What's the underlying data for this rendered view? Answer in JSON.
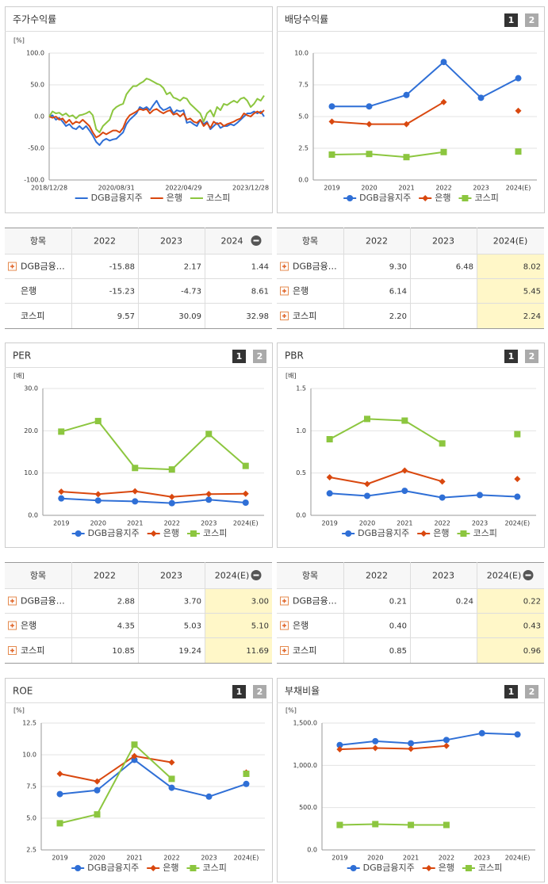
{
  "chart_data": [
    {
      "type": "line",
      "title": "주가수익률",
      "y_unit": "[%]",
      "grid": true,
      "legend": "bottom",
      "categories": [
        "2018/12/28",
        null,
        null,
        null,
        null,
        null,
        null,
        null,
        null,
        null,
        null,
        null,
        null,
        null,
        null,
        null,
        null,
        null,
        null,
        null,
        "2020/08/31",
        null,
        null,
        null,
        null,
        null,
        null,
        null,
        null,
        null,
        null,
        null,
        null,
        null,
        null,
        null,
        null,
        null,
        null,
        null,
        "2022/04/29",
        null,
        null,
        null,
        null,
        null,
        null,
        null,
        null,
        null,
        null,
        null,
        null,
        null,
        null,
        null,
        null,
        null,
        null,
        null,
        "2023/12/28",
        null,
        null,
        null,
        null
      ],
      "ylim": [
        -100,
        100
      ],
      "yticks": [
        {
          "value": -100,
          "label": "-100.0"
        },
        {
          "value": -50,
          "label": "-50.0"
        },
        {
          "value": 0,
          "label": "0.0"
        },
        {
          "value": 50,
          "label": "50.0"
        },
        {
          "value": 100,
          "label": "100.0"
        }
      ],
      "series": [
        {
          "name": "DGB금융지주",
          "color": "#2f6fd6",
          "values": [
            0,
            2,
            -5,
            -2,
            -8,
            -15,
            -12,
            -18,
            -20,
            -15,
            -20,
            -15,
            -22,
            -30,
            -40,
            -45,
            -38,
            -35,
            -38,
            -36,
            -35,
            -30,
            -25,
            -12,
            -5,
            0,
            5,
            15,
            12,
            15,
            10,
            18,
            25,
            15,
            10,
            12,
            15,
            5,
            10,
            8,
            10,
            -10,
            -8,
            -12,
            -15,
            -5,
            -12,
            -8,
            -20,
            -15,
            -10,
            -18,
            -15,
            -15,
            -12,
            -14,
            -10,
            -5,
            0,
            5,
            5,
            8,
            5,
            8,
            0
          ]
        },
        {
          "name": "은행",
          "color": "#d9480f",
          "values": [
            0,
            -2,
            0,
            -5,
            -3,
            -10,
            -5,
            -12,
            -8,
            -10,
            -5,
            -10,
            -15,
            -25,
            -33,
            -30,
            -25,
            -28,
            -25,
            -22,
            -22,
            -25,
            -18,
            -5,
            2,
            5,
            8,
            12,
            10,
            12,
            5,
            10,
            12,
            8,
            5,
            8,
            10,
            3,
            5,
            0,
            5,
            -5,
            -3,
            -8,
            -10,
            -5,
            -15,
            -10,
            -18,
            -8,
            -12,
            -10,
            -15,
            -12,
            -10,
            -8,
            -5,
            -3,
            5,
            2,
            0,
            5,
            8,
            5,
            10
          ]
        },
        {
          "name": "코스피",
          "color": "#8cc63f",
          "values": [
            0,
            8,
            5,
            6,
            2,
            5,
            0,
            2,
            -3,
            2,
            3,
            5,
            8,
            2,
            -20,
            -25,
            -15,
            -10,
            -5,
            10,
            15,
            18,
            20,
            35,
            42,
            48,
            48,
            52,
            55,
            60,
            58,
            55,
            52,
            50,
            45,
            35,
            38,
            30,
            28,
            25,
            30,
            28,
            20,
            15,
            10,
            5,
            -8,
            5,
            10,
            0,
            15,
            10,
            20,
            18,
            22,
            25,
            22,
            28,
            30,
            25,
            15,
            20,
            28,
            25,
            33
          ]
        }
      ]
    },
    {
      "type": "line",
      "title": "배당수익률",
      "buttons": [
        "1",
        "2"
      ],
      "grid": true,
      "legend": "bottom",
      "categories": [
        "2019",
        "2020",
        "2021",
        "2022",
        "2023",
        "2024(E)"
      ],
      "ylim": [
        0,
        10
      ],
      "yticks": [
        {
          "value": 0,
          "label": "0.0"
        },
        2.5,
        {
          "value": 5,
          "label": "5.0"
        },
        7.5,
        {
          "value": 10,
          "label": "10.0"
        }
      ],
      "series": [
        {
          "name": "DGB금융지주",
          "color": "#2f6fd6",
          "marker": "circle",
          "values": [
            5.8,
            5.8,
            6.7,
            9.3,
            6.48,
            8.02
          ]
        },
        {
          "name": "은행",
          "color": "#d9480f",
          "marker": "diamond",
          "values": [
            4.6,
            4.4,
            4.4,
            6.14,
            null,
            5.45
          ]
        },
        {
          "name": "코스피",
          "color": "#8cc63f",
          "marker": "square",
          "values": [
            2.0,
            2.05,
            1.8,
            2.2,
            null,
            2.24
          ]
        }
      ]
    },
    {
      "type": "line",
      "title": "PER",
      "buttons": [
        "1",
        "2"
      ],
      "y_unit": "[배]",
      "grid": true,
      "legend": "bottom",
      "categories": [
        "2019",
        "2020",
        "2021",
        "2022",
        "2023",
        "2024(E)"
      ],
      "ylim": [
        0,
        30
      ],
      "yticks": [
        {
          "value": 0,
          "label": "0.0"
        },
        {
          "value": 10,
          "label": "10.0"
        },
        {
          "value": 20,
          "label": "20.0"
        },
        {
          "value": 30,
          "label": "30.0"
        }
      ],
      "series": [
        {
          "name": "DGB금융지주",
          "color": "#2f6fd6",
          "marker": "circle",
          "values": [
            4.0,
            3.5,
            3.3,
            2.88,
            3.7,
            3.0
          ]
        },
        {
          "name": "은행",
          "color": "#d9480f",
          "marker": "diamond",
          "values": [
            5.6,
            5.0,
            5.7,
            4.35,
            5.03,
            5.1
          ]
        },
        {
          "name": "코스피",
          "color": "#8cc63f",
          "marker": "square",
          "values": [
            19.8,
            22.3,
            11.2,
            10.85,
            19.24,
            11.69
          ]
        }
      ]
    },
    {
      "type": "line",
      "title": "PBR",
      "buttons": [
        "1",
        "2"
      ],
      "y_unit": "[배]",
      "grid": true,
      "legend": "bottom",
      "categories": [
        "2019",
        "2020",
        "2021",
        "2022",
        "2023",
        "2024(E)"
      ],
      "ylim": [
        0,
        1.5
      ],
      "yticks": [
        {
          "value": 0,
          "label": "0.0"
        },
        0.5,
        {
          "value": 1,
          "label": "1.0"
        },
        1.5
      ],
      "series": [
        {
          "name": "DGB금융지주",
          "color": "#2f6fd6",
          "marker": "circle",
          "values": [
            0.26,
            0.23,
            0.29,
            0.21,
            0.24,
            0.22
          ]
        },
        {
          "name": "은행",
          "color": "#d9480f",
          "marker": "diamond",
          "values": [
            0.45,
            0.37,
            0.53,
            0.4,
            null,
            0.43
          ]
        },
        {
          "name": "코스피",
          "color": "#8cc63f",
          "marker": "square",
          "values": [
            0.9,
            1.14,
            1.12,
            0.85,
            null,
            0.96
          ]
        }
      ]
    },
    {
      "type": "line",
      "title": "ROE",
      "buttons": [
        "1",
        "2"
      ],
      "y_unit": "[%]",
      "grid": true,
      "legend": "bottom",
      "categories": [
        "2019",
        "2020",
        "2021",
        "2022",
        "2023",
        "2024(E)"
      ],
      "ylim": [
        2.5,
        12.5
      ],
      "yticks": [
        2.5,
        {
          "value": 5,
          "label": "5.0"
        },
        7.5,
        {
          "value": 10,
          "label": "10.0"
        },
        12.5
      ],
      "series": [
        {
          "name": "DGB금융지주",
          "color": "#2f6fd6",
          "marker": "circle",
          "values": [
            6.9,
            7.2,
            9.6,
            7.4,
            6.7,
            7.7
          ]
        },
        {
          "name": "은행",
          "color": "#d9480f",
          "marker": "diamond",
          "values": [
            8.5,
            7.9,
            9.9,
            9.4,
            null,
            8.6
          ]
        },
        {
          "name": "코스피",
          "color": "#8cc63f",
          "marker": "square",
          "values": [
            4.6,
            5.3,
            10.8,
            8.1,
            null,
            8.5
          ]
        }
      ]
    },
    {
      "type": "line",
      "title": "부채비율",
      "buttons": [
        "1",
        "2"
      ],
      "y_unit": "[%]",
      "grid": true,
      "legend": "bottom",
      "categories": [
        "2019",
        "2020",
        "2021",
        "2022",
        "2023",
        "2024(E)"
      ],
      "ylim": [
        0,
        1500
      ],
      "yticks": [
        {
          "value": 0,
          "label": "0.0"
        },
        {
          "value": 500,
          "label": "500.0"
        },
        {
          "value": 1000,
          "label": "1,000.0"
        },
        {
          "value": 1500,
          "label": "1,500.0"
        }
      ],
      "series": [
        {
          "name": "DGB금융지주",
          "color": "#2f6fd6",
          "marker": "circle",
          "values": [
            1240,
            1285,
            1260,
            1300,
            1380,
            1365
          ]
        },
        {
          "name": "은행",
          "color": "#d9480f",
          "marker": "diamond",
          "values": [
            1190,
            1205,
            1195,
            1230,
            null,
            null
          ]
        },
        {
          "name": "코스피",
          "color": "#8cc63f",
          "marker": "square",
          "values": [
            295,
            305,
            295,
            295,
            null,
            null
          ]
        }
      ]
    }
  ],
  "tables": [
    {
      "columns": [
        "항목",
        "2022",
        "2023",
        "2024"
      ],
      "collapse_icon": true,
      "highlight_last": false,
      "rows": [
        {
          "label": "DGB금융…",
          "expand": true,
          "cells": [
            "-15.88",
            "2.17",
            "1.44"
          ]
        },
        {
          "label": "은행",
          "expand": false,
          "cells": [
            "-15.23",
            "-4.73",
            "8.61"
          ]
        },
        {
          "label": "코스피",
          "expand": false,
          "cells": [
            "9.57",
            "30.09",
            "32.98"
          ]
        }
      ]
    },
    {
      "columns": [
        "항목",
        "2022",
        "2023",
        "2024(E)"
      ],
      "collapse_icon": false,
      "highlight_last": true,
      "rows": [
        {
          "label": "DGB금융…",
          "expand": true,
          "cells": [
            "9.30",
            "6.48",
            "8.02"
          ]
        },
        {
          "label": "은행",
          "expand": true,
          "cells": [
            "6.14",
            null,
            "5.45"
          ]
        },
        {
          "label": "코스피",
          "expand": true,
          "cells": [
            "2.20",
            null,
            "2.24"
          ]
        }
      ]
    },
    {
      "columns": [
        "항목",
        "2022",
        "2023",
        "2024(E)"
      ],
      "collapse_icon": true,
      "highlight_last": true,
      "rows": [
        {
          "label": "DGB금융…",
          "expand": true,
          "cells": [
            "2.88",
            "3.70",
            "3.00"
          ]
        },
        {
          "label": "은행",
          "expand": true,
          "cells": [
            "4.35",
            "5.03",
            "5.10"
          ]
        },
        {
          "label": "코스피",
          "expand": true,
          "cells": [
            "10.85",
            "19.24",
            "11.69"
          ]
        }
      ]
    },
    {
      "columns": [
        "항목",
        "2022",
        "2023",
        "2024(E)"
      ],
      "collapse_icon": true,
      "highlight_last": true,
      "rows": [
        {
          "label": "DGB금융…",
          "expand": true,
          "cells": [
            "0.21",
            "0.24",
            "0.22"
          ]
        },
        {
          "label": "은행",
          "expand": true,
          "cells": [
            "0.40",
            null,
            "0.43"
          ]
        },
        {
          "label": "코스피",
          "expand": true,
          "cells": [
            "0.85",
            null,
            "0.96"
          ]
        }
      ]
    }
  ]
}
